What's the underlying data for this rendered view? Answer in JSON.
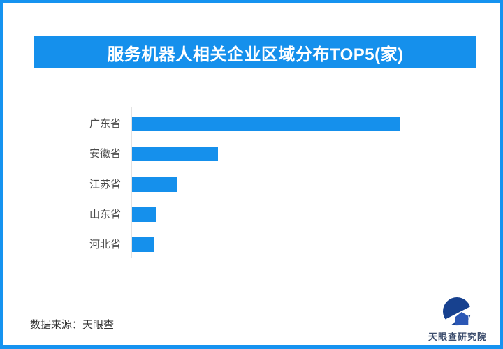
{
  "frame": {
    "border_color": "#1693F0",
    "background": "#FFFFFF"
  },
  "header": {
    "title": "服务机器人相关企业区域分布TOP5(家)",
    "bg_color": "#1590EC",
    "text_color": "#FFFFFF"
  },
  "chart_data": {
    "type": "bar",
    "orientation": "horizontal",
    "title": "服务机器人相关企业区域分布TOP5(家)",
    "categories": [
      "广东省",
      "安徽省",
      "江苏省",
      "山东省",
      "河北省"
    ],
    "values": [
      100,
      32,
      17,
      9,
      8
    ],
    "values_note": "relative bar lengths (max = 100); no numeric axis or value labels are shown in the chart",
    "bar_color": "#1590EC",
    "axis_line_color": "#E3E3E3",
    "label_color": "#4A4A4A",
    "grid": false,
    "legend": false,
    "value_labels_shown": false
  },
  "footer": {
    "source_label": "数据来源：天眼查",
    "logo_text": "天眼查研究院",
    "logo_colors": {
      "dark": "#17418F",
      "light": "#2B57B5",
      "text": "#3D4E6E"
    }
  }
}
